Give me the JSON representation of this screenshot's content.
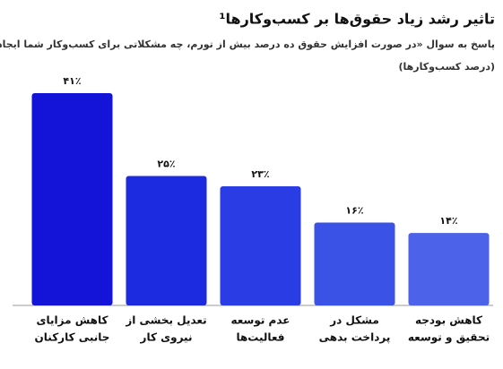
{
  "chart_data": {
    "type": "bar",
    "title": "تاثیر رشد زیاد حقوق‌ها بر کسب‌وکارها¹",
    "subtitle": [
      "پاسخ به سوال «در صورت افزایش حقوق ده درصد بیش از تورم، چه مشکلاتی برای کسب‌وکار شما ایجاد می‌شود؟»",
      "(درصد کسب‌وکارها)"
    ],
    "categories": [
      [
        "کاهش مزایای",
        "جانبی کارکنان"
      ],
      [
        "تعدیل بخشی از",
        "نیروی کار"
      ],
      [
        "عدم توسعه",
        "فعالیت‌ها"
      ],
      [
        "مشکل در",
        "پرداخت بدهی"
      ],
      [
        "کاهش بودجه",
        "تحقیق و توسعه"
      ]
    ],
    "values": [
      41,
      25,
      23,
      16,
      14
    ],
    "value_labels": [
      "۴۱٪",
      "۲۵٪",
      "۲۳٪",
      "۱۶٪",
      "۱۴٪"
    ],
    "colors": [
      "#1414d9",
      "#1c2ae0",
      "#2a3ce3",
      "#3a52e6",
      "#4c62e9"
    ]
  }
}
